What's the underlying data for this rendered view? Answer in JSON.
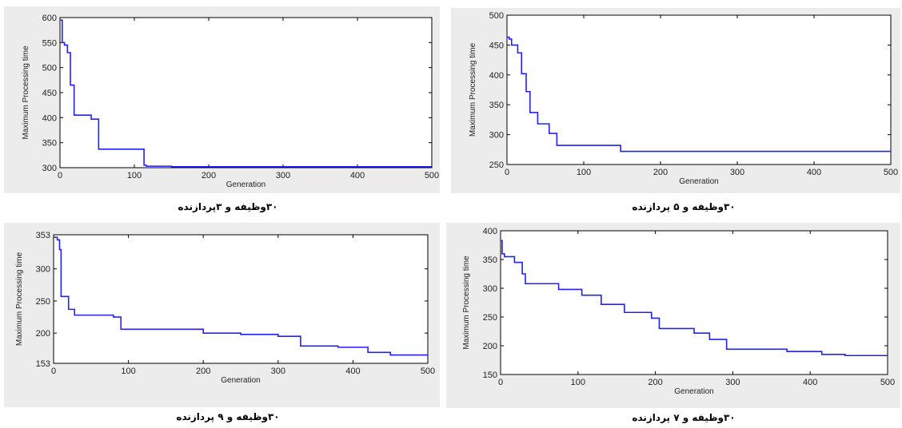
{
  "chart_data": [
    {
      "type": "line",
      "caption": "۳۰وظیفه و ۳پردازنده",
      "xlabel": "Generation",
      "ylabel": "Maximum Processing time",
      "xlim": [
        0,
        500
      ],
      "ylim": [
        300,
        600
      ],
      "xticks": [
        0,
        100,
        200,
        300,
        400,
        500
      ],
      "yticks": [
        300,
        350,
        400,
        450,
        500,
        550,
        600
      ],
      "color": "#2222ee",
      "series": [
        {
          "step": true,
          "x": [
            0,
            3,
            6,
            10,
            14,
            19,
            42,
            52,
            113,
            116,
            150,
            500
          ],
          "y": [
            595,
            550,
            545,
            530,
            465,
            405,
            397,
            337,
            305,
            303,
            302,
            302
          ]
        }
      ]
    },
    {
      "type": "line",
      "caption": "۳۰وظیفه و ۵ پردازنده",
      "xlabel": "Generation",
      "ylabel": "Maximum Processing time",
      "xlim": [
        0,
        500
      ],
      "ylim": [
        250,
        500
      ],
      "xticks": [
        0,
        100,
        200,
        300,
        400,
        500
      ],
      "yticks": [
        250,
        300,
        350,
        400,
        450,
        500
      ],
      "color": "#2222ee",
      "series": [
        {
          "step": true,
          "x": [
            0,
            3,
            6,
            14,
            19,
            25,
            30,
            40,
            55,
            65,
            148,
            500
          ],
          "y": [
            463,
            460,
            450,
            437,
            402,
            372,
            337,
            318,
            302,
            282,
            272,
            272
          ]
        }
      ]
    },
    {
      "type": "line",
      "caption": "۳۰وظیفه و ۹ پردازنده",
      "xlabel": "Generation",
      "ylabel": "Maximum Processing time",
      "xlim": [
        0,
        500
      ],
      "ylim": [
        153,
        353
      ],
      "xticks": [
        0,
        100,
        200,
        300,
        400,
        500
      ],
      "yticks": [
        153,
        200,
        250,
        300,
        353
      ],
      "color": "#2222ee",
      "series": [
        {
          "step": true,
          "x": [
            0,
            5,
            8,
            10,
            20,
            28,
            80,
            90,
            200,
            250,
            300,
            330,
            380,
            420,
            450,
            500
          ],
          "y": [
            349,
            345,
            330,
            257,
            237,
            228,
            225,
            206,
            200,
            198,
            195,
            180,
            178,
            170,
            166,
            166
          ]
        }
      ]
    },
    {
      "type": "line",
      "caption": "۳۰وظیفه و ۷ پردازنده",
      "xlabel": "Generation",
      "ylabel": "Maximum Processing time",
      "xlim": [
        0,
        500
      ],
      "ylim": [
        150,
        400
      ],
      "xticks": [
        0,
        100,
        200,
        300,
        400,
        500
      ],
      "yticks": [
        150,
        200,
        250,
        300,
        350,
        400
      ],
      "color": "#2222ee",
      "series": [
        {
          "step": true,
          "x": [
            0,
            2,
            5,
            18,
            28,
            32,
            75,
            105,
            130,
            160,
            195,
            205,
            250,
            270,
            292,
            370,
            415,
            445,
            500
          ],
          "y": [
            383,
            360,
            355,
            345,
            325,
            308,
            298,
            288,
            272,
            258,
            248,
            230,
            222,
            211,
            194,
            190,
            185,
            183,
            183
          ]
        }
      ]
    }
  ]
}
